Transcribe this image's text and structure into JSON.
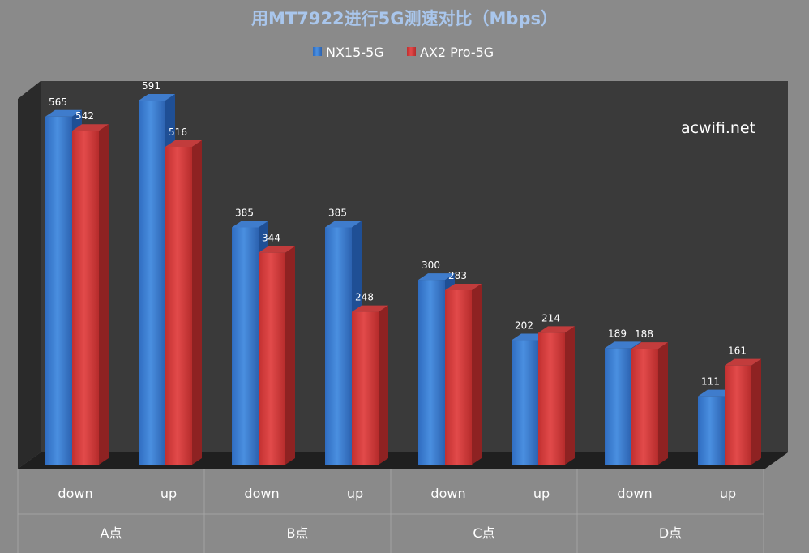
{
  "chart_data": {
    "type": "bar",
    "title": "用MT7922进行5G测速对比（Mbps）",
    "watermark": "acwifi.net",
    "groups": [
      "A点",
      "B点",
      "C点",
      "D点"
    ],
    "categories": [
      "down",
      "up",
      "down",
      "up",
      "down",
      "up",
      "down",
      "up"
    ],
    "series": [
      {
        "name": "NX15-5G",
        "color": "#3a7dd0",
        "values": [
          565,
          591,
          385,
          385,
          300,
          202,
          189,
          111
        ]
      },
      {
        "name": "AX2 Pro-5G",
        "color": "#d23c3c",
        "values": [
          542,
          516,
          344,
          248,
          283,
          214,
          188,
          161
        ]
      }
    ],
    "ylim": [
      0,
      591
    ],
    "legend_position": "top",
    "grid": false
  }
}
